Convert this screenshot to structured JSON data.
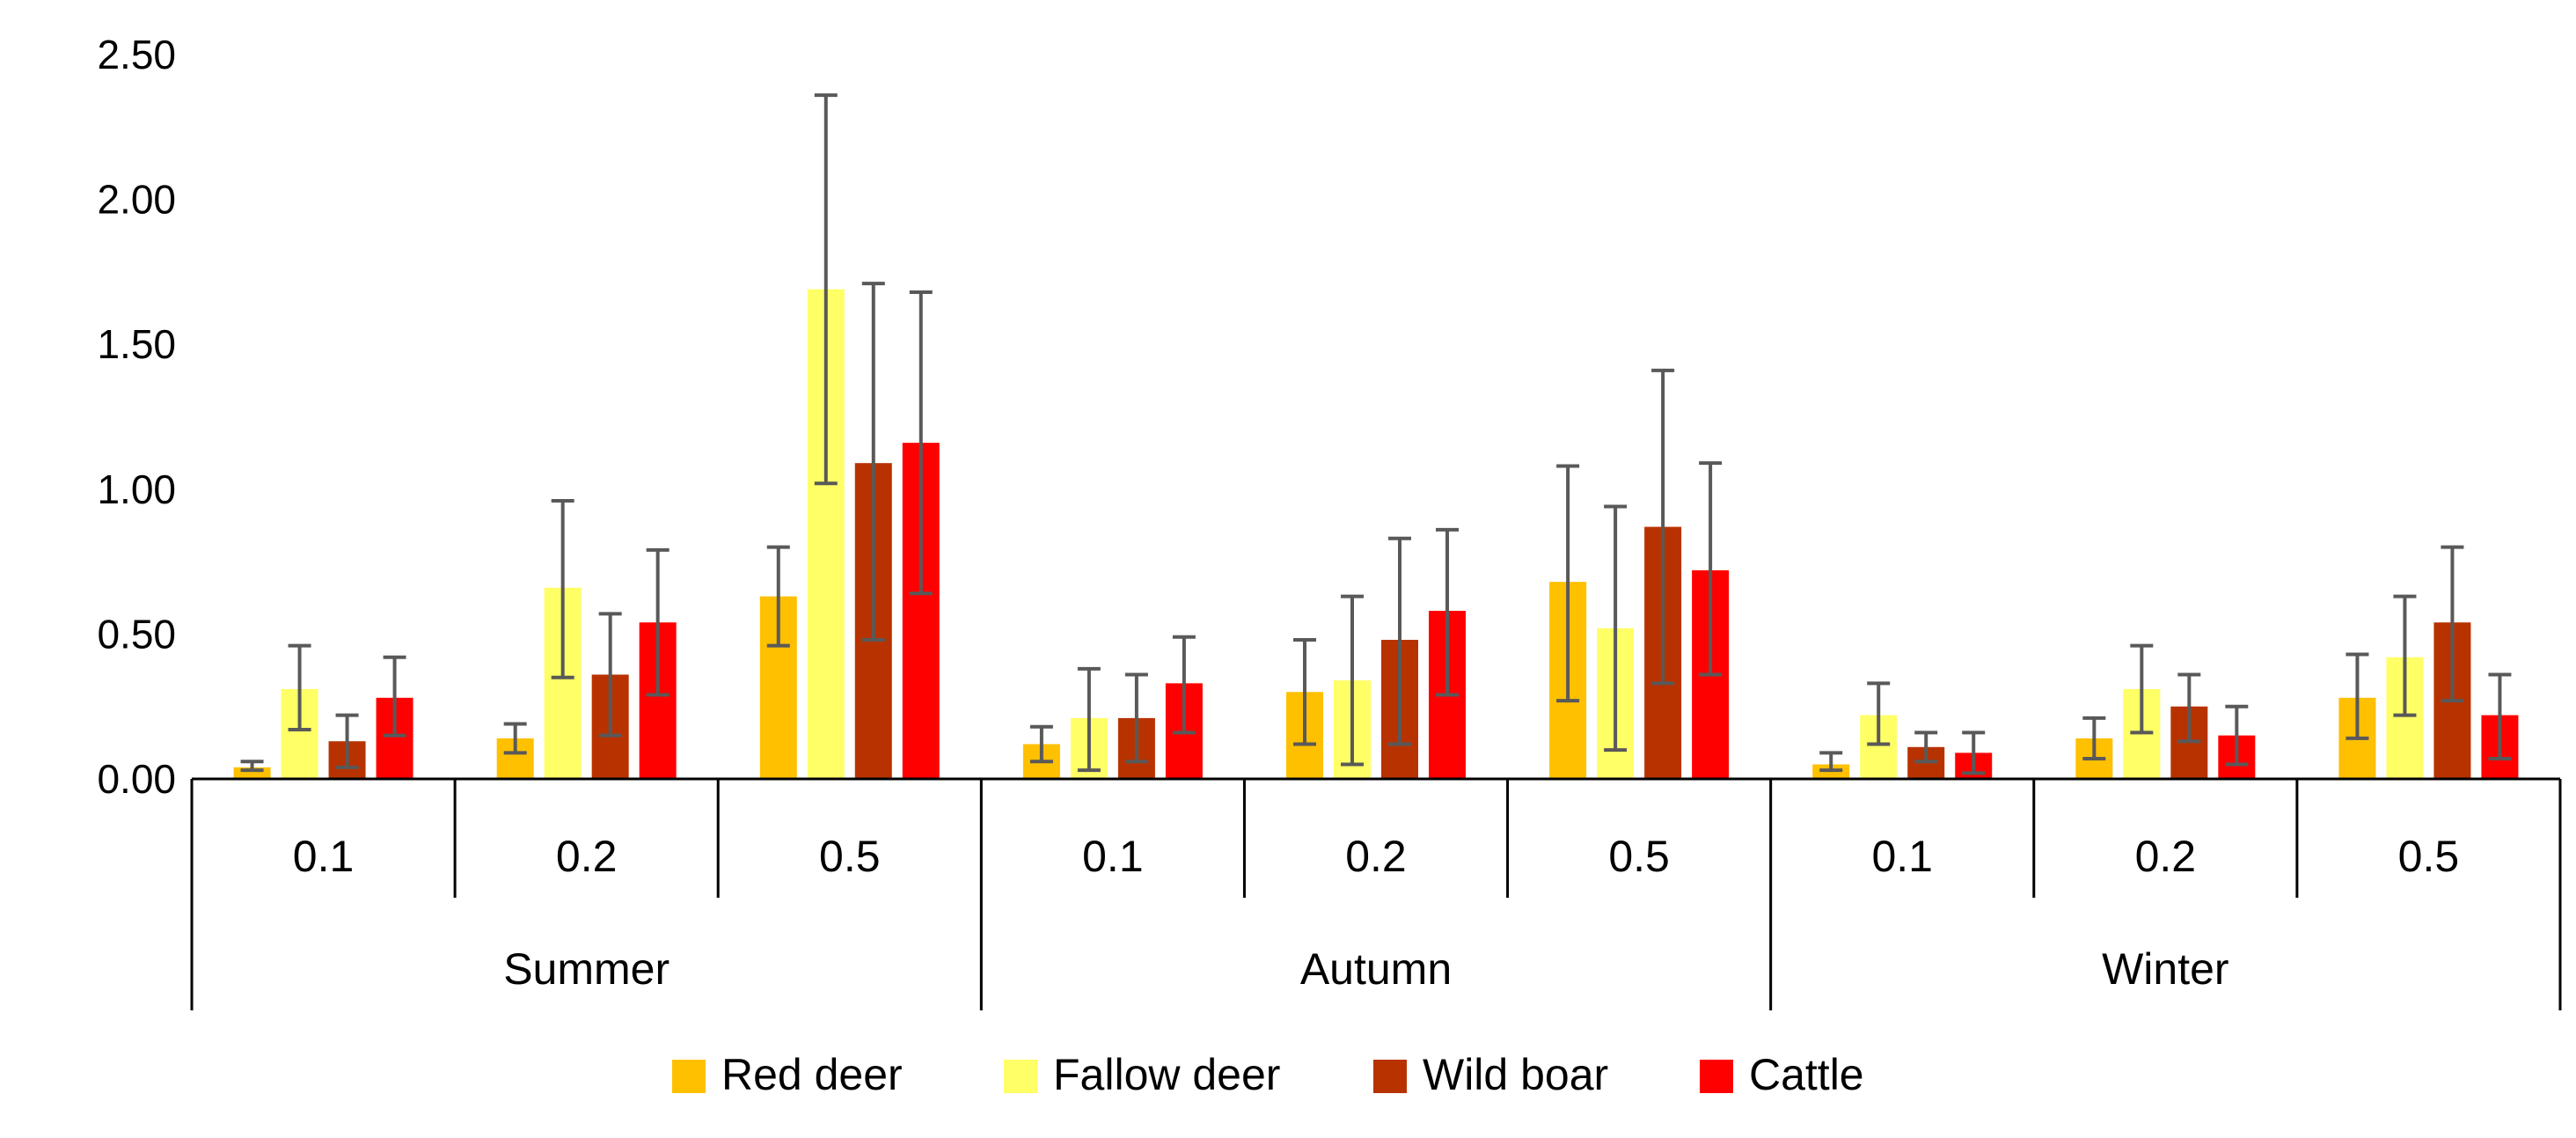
{
  "chart_data": {
    "type": "bar",
    "title": "",
    "xlabel": "",
    "ylabel": "",
    "ylim": [
      0,
      2.5
    ],
    "yticks": [
      "0.00",
      "0.50",
      "1.00",
      "1.50",
      "2.00",
      "2.50"
    ],
    "grid": false,
    "legend_position": "bottom",
    "groups": [
      {
        "label": "Summer",
        "categories": [
          "0.1",
          "0.2",
          "0.5"
        ]
      },
      {
        "label": "Autumn",
        "categories": [
          "0.1",
          "0.2",
          "0.5"
        ]
      },
      {
        "label": "Winter",
        "categories": [
          "0.1",
          "0.2",
          "0.5"
        ]
      }
    ],
    "series": [
      {
        "name": "Red deer",
        "color": "#FFC000",
        "values": [
          0.04,
          0.14,
          0.63,
          0.12,
          0.3,
          0.68,
          0.05,
          0.14,
          0.28
        ],
        "err_low": [
          0.03,
          0.09,
          0.46,
          0.06,
          0.12,
          0.27,
          0.03,
          0.07,
          0.14
        ],
        "err_high": [
          0.06,
          0.19,
          0.8,
          0.18,
          0.48,
          1.08,
          0.09,
          0.21,
          0.43
        ]
      },
      {
        "name": "Fallow deer",
        "color": "#FFFF66",
        "values": [
          0.31,
          0.66,
          1.69,
          0.21,
          0.34,
          0.52,
          0.22,
          0.31,
          0.42
        ],
        "err_low": [
          0.17,
          0.35,
          1.02,
          0.03,
          0.05,
          0.1,
          0.12,
          0.16,
          0.22
        ],
        "err_high": [
          0.46,
          0.96,
          2.36,
          0.38,
          0.63,
          0.94,
          0.33,
          0.46,
          0.63
        ]
      },
      {
        "name": "Wild boar",
        "color": "#B83200",
        "values": [
          0.13,
          0.36,
          1.09,
          0.21,
          0.48,
          0.87,
          0.11,
          0.25,
          0.54
        ],
        "err_low": [
          0.04,
          0.15,
          0.48,
          0.06,
          0.12,
          0.33,
          0.06,
          0.13,
          0.27
        ],
        "err_high": [
          0.22,
          0.57,
          1.71,
          0.36,
          0.83,
          1.41,
          0.16,
          0.36,
          0.8
        ]
      },
      {
        "name": "Cattle",
        "color": "#FF0000",
        "values": [
          0.28,
          0.54,
          1.16,
          0.33,
          0.58,
          0.72,
          0.09,
          0.15,
          0.22
        ],
        "err_low": [
          0.15,
          0.29,
          0.64,
          0.16,
          0.29,
          0.36,
          0.02,
          0.05,
          0.07
        ],
        "err_high": [
          0.42,
          0.79,
          1.68,
          0.49,
          0.86,
          1.09,
          0.16,
          0.25,
          0.36
        ]
      }
    ]
  }
}
